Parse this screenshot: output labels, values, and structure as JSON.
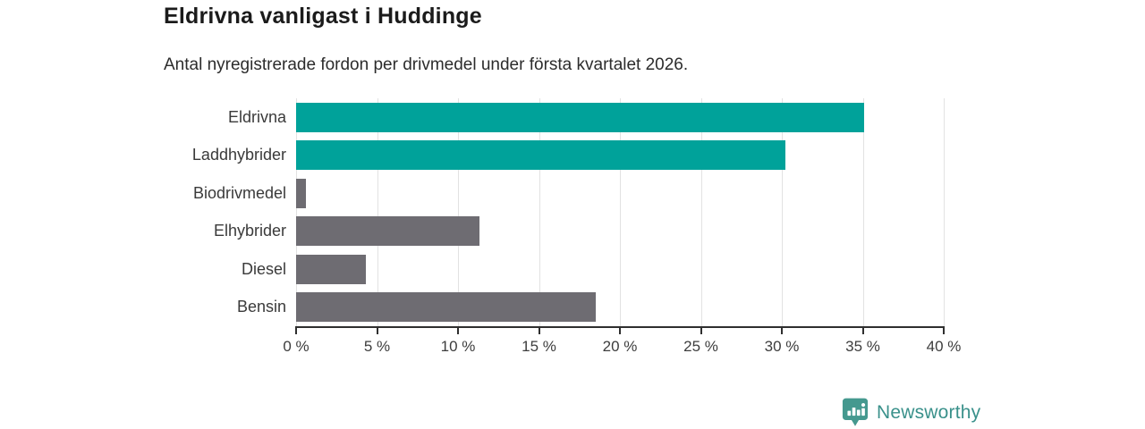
{
  "title": "Eldrivna vanligast i Huddinge",
  "subtitle": "Antal nyregistrerade fordon per drivmedel under första kvartalet 2026.",
  "chart_data": {
    "type": "bar",
    "orientation": "horizontal",
    "title": "Eldrivna vanligast i Huddinge",
    "subtitle": "Antal nyregistrerade fordon per drivmedel under första kvartalet 2026.",
    "categories": [
      "Eldrivna",
      "Laddhybrider",
      "Biodrivmedel",
      "Elhybrider",
      "Diesel",
      "Bensin"
    ],
    "values": [
      35.1,
      30.2,
      0.6,
      11.3,
      4.3,
      18.5
    ],
    "unit": "%",
    "bar_colors": [
      "#00a29a",
      "#00a29a",
      "#6e6c72",
      "#6e6c72",
      "#6e6c72",
      "#6e6c72"
    ],
    "highlight_color": "#00a29a",
    "default_color": "#6e6c72",
    "xlim": [
      0,
      40
    ],
    "x_ticks": [
      0,
      5,
      10,
      15,
      20,
      25,
      30,
      35,
      40
    ],
    "x_tick_labels": [
      "0 %",
      "5 %",
      "10 %",
      "15 %",
      "20 %",
      "25 %",
      "30 %",
      "35 %",
      "40 %"
    ],
    "grid": "vertical",
    "grid_color": "#e2e2e2",
    "axis_color": "#2f2f2f",
    "legend": "none"
  },
  "footer": {
    "brand": "Newsworthy",
    "brand_color": "#3a918b",
    "icon": "bar-chart-pin-icon",
    "icon_color": "#45998f"
  }
}
